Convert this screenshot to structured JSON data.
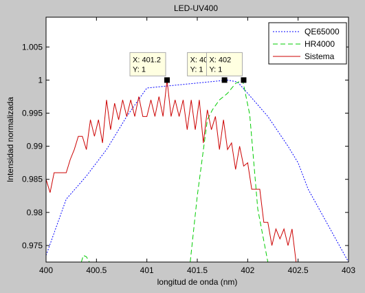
{
  "chart_data": {
    "type": "line",
    "title": "LED-UV400",
    "xlabel": "longitud de onda (nm)",
    "ylabel": "Intensidad normalizada",
    "xlim": [
      400,
      403
    ],
    "ylim": [
      0.9725,
      1.0095
    ],
    "xticks": [
      400,
      400.5,
      401,
      401.5,
      402,
      402.5,
      403
    ],
    "xtick_labels": [
      "400",
      "400.5",
      "401",
      "401.5",
      "402",
      "402.5",
      "403"
    ],
    "yticks": [
      0.975,
      0.98,
      0.985,
      0.99,
      0.995,
      1,
      1.005
    ],
    "ytick_labels": [
      "0.975",
      "0.98",
      "0.985",
      "0.99",
      "0.995",
      "1",
      "1.005"
    ],
    "grid": false,
    "legend_position": "top-right",
    "series": [
      {
        "name": "QE65000",
        "color": "#0000ff",
        "style": "dotted",
        "x": [
          400,
          400.2,
          400.4,
          400.6,
          400.8,
          401,
          401.2,
          401.4,
          401.6,
          401.8,
          401.9,
          402,
          402.2,
          402.4,
          402.5,
          402.6,
          402.8,
          403
        ],
        "y": [
          0.9735,
          0.982,
          0.9855,
          0.9895,
          0.9945,
          0.9988,
          0.9991,
          0.9994,
          0.9997,
          1.0,
          0.9997,
          0.998,
          0.9945,
          0.99,
          0.9875,
          0.9835,
          0.978,
          0.9725
        ]
      },
      {
        "name": "HR4000",
        "color": "#00cc00",
        "style": "dashed",
        "segments": [
          {
            "x": [
              400.35,
              400.37,
              400.4,
              400.43
            ],
            "y": [
              0.9725,
              0.9735,
              0.9733,
              0.9725
            ]
          },
          {
            "x": [
              401.43,
              401.5,
              401.6,
              401.65,
              401.72,
              401.8,
              401.88,
              401.95,
              402.02,
              402.1,
              402.2
            ],
            "y": [
              0.9725,
              0.9825,
              0.994,
              0.9955,
              0.997,
              0.998,
              0.9995,
              1.0,
              0.9948,
              0.9805,
              0.9725
            ]
          }
        ]
      },
      {
        "name": "Sistema",
        "color": "#cc0000",
        "style": "solid",
        "x": [
          400,
          400.04,
          400.08,
          400.12,
          400.16,
          400.2,
          400.24,
          400.28,
          400.32,
          400.36,
          400.4,
          400.44,
          400.48,
          400.52,
          400.56,
          400.6,
          400.64,
          400.68,
          400.72,
          400.76,
          400.8,
          400.84,
          400.88,
          400.92,
          400.96,
          401,
          401.04,
          401.08,
          401.12,
          401.16,
          401.2,
          401.24,
          401.28,
          401.32,
          401.36,
          401.4,
          401.44,
          401.48,
          401.52,
          401.56,
          401.6,
          401.64,
          401.68,
          401.72,
          401.76,
          401.8,
          401.84,
          401.88,
          401.92,
          401.96,
          402,
          402.04,
          402.08,
          402.12,
          402.16,
          402.2,
          402.24,
          402.28,
          402.32,
          402.36,
          402.4,
          402.44,
          402.48,
          402.52
        ],
        "y": [
          0.985,
          0.983,
          0.986,
          0.986,
          0.986,
          0.986,
          0.988,
          0.9895,
          0.9915,
          0.9915,
          0.9895,
          0.994,
          0.9915,
          0.994,
          0.9905,
          0.997,
          0.9925,
          0.9965,
          0.994,
          0.997,
          0.9945,
          0.997,
          0.9945,
          0.9975,
          0.9945,
          0.9945,
          0.997,
          0.9945,
          0.9975,
          0.9945,
          1.0,
          0.9945,
          0.997,
          0.9945,
          0.997,
          0.9925,
          0.997,
          0.9925,
          0.997,
          0.9905,
          0.9955,
          0.9925,
          0.9945,
          0.9895,
          0.994,
          0.9895,
          0.9905,
          0.9865,
          0.99,
          0.987,
          0.9875,
          0.9835,
          0.9835,
          0.9835,
          0.9785,
          0.9785,
          0.975,
          0.9775,
          0.976,
          0.9775,
          0.975,
          0.9775,
          0.9725,
          0.9725
        ]
      }
    ],
    "datatips": [
      {
        "x_text": "X: 401.2",
        "y_text": "Y: 1",
        "x": 401.2,
        "y": 1
      },
      {
        "x_text": "X: 401.8",
        "y_text": "Y: 1",
        "x": 401.77,
        "y": 1
      },
      {
        "x_text": "X: 402",
        "y_text": "Y: 1",
        "x": 401.96,
        "y": 1
      }
    ]
  }
}
